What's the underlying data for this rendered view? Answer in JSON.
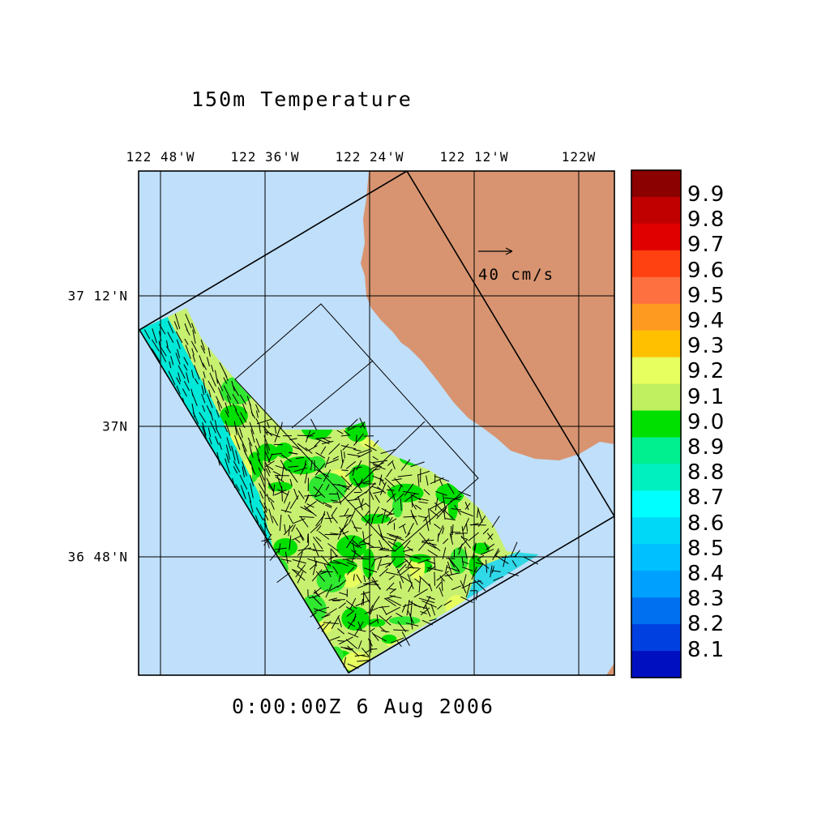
{
  "title": "150m Temperature",
  "time_stamp": "0:00:00Z   6 Aug 2006",
  "vector_scale": {
    "label": "40 cm/s"
  },
  "map": {
    "lon_labels": [
      "122 48'W",
      "122 36'W",
      "122 24'W",
      "122 12'W",
      "122W"
    ],
    "lat_labels": [
      "37 12'N",
      "37N",
      "36 48'N"
    ],
    "colors": {
      "ocean": "#c0dffa",
      "land": "#d89470",
      "grid": "#000000"
    }
  },
  "colorbar": {
    "labels": [
      "9.9",
      "9.8",
      "9.7",
      "9.6",
      "9.5",
      "9.4",
      "9.3",
      "9.2",
      "9.1",
      "9.0",
      "8.9",
      "8.8",
      "8.7",
      "8.6",
      "8.5",
      "8.4",
      "8.3",
      "8.2",
      "8.1"
    ],
    "colors": [
      "#8b0000",
      "#c00000",
      "#e00000",
      "#ff4010",
      "#ff7040",
      "#ff9a20",
      "#ffc000",
      "#e8ff60",
      "#c0f060",
      "#00e000",
      "#00f090",
      "#00f0c0",
      "#00ffff",
      "#00d8f8",
      "#00c0ff",
      "#00a0ff",
      "#0070f0",
      "#0040e0",
      "#0010c0"
    ]
  }
}
